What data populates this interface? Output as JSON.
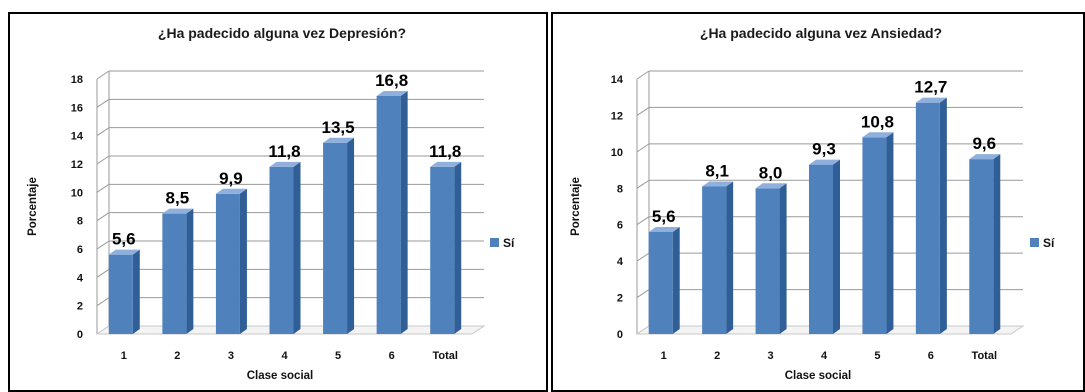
{
  "colors": {
    "bar_front": "#4f81bd",
    "bar_side": "#2f5f96",
    "bar_top": "#8fb0dc",
    "grid": "#9a9a9a",
    "floor": "#c8c8c8"
  },
  "chart_data": [
    {
      "type": "bar",
      "title": "¿Ha padecido alguna vez Depresión?",
      "xlabel": "Clase social",
      "ylabel": "Porcentaje",
      "categories": [
        "1",
        "2",
        "3",
        "4",
        "5",
        "6",
        "Total"
      ],
      "series": [
        {
          "name": "Sí",
          "values": [
            5.6,
            8.5,
            9.9,
            11.8,
            13.5,
            16.8,
            11.8
          ]
        }
      ],
      "data_labels": [
        "5,6",
        "8,5",
        "9,9",
        "11,8",
        "13,5",
        "16,8",
        "11,8"
      ],
      "ylim": [
        0,
        18
      ],
      "yticks": [
        "0",
        "2",
        "4",
        "6",
        "8",
        "10",
        "12",
        "14",
        "16",
        "18"
      ],
      "grid": true,
      "legend": "right"
    },
    {
      "type": "bar",
      "title": "¿Ha padecido alguna vez Ansiedad?",
      "xlabel": "Clase social",
      "ylabel": "Porcentaje",
      "categories": [
        "1",
        "2",
        "3",
        "4",
        "5",
        "6",
        "Total"
      ],
      "series": [
        {
          "name": "Sí",
          "values": [
            5.6,
            8.1,
            8.0,
            9.3,
            10.8,
            12.7,
            9.6
          ]
        }
      ],
      "data_labels": [
        "5,6",
        "8,1",
        "8,0",
        "9,3",
        "10,8",
        "12,7",
        "9,6"
      ],
      "ylim": [
        0,
        14
      ],
      "yticks": [
        "0",
        "2",
        "4",
        "6",
        "8",
        "10",
        "12",
        "14"
      ],
      "grid": true,
      "legend": "right"
    }
  ]
}
